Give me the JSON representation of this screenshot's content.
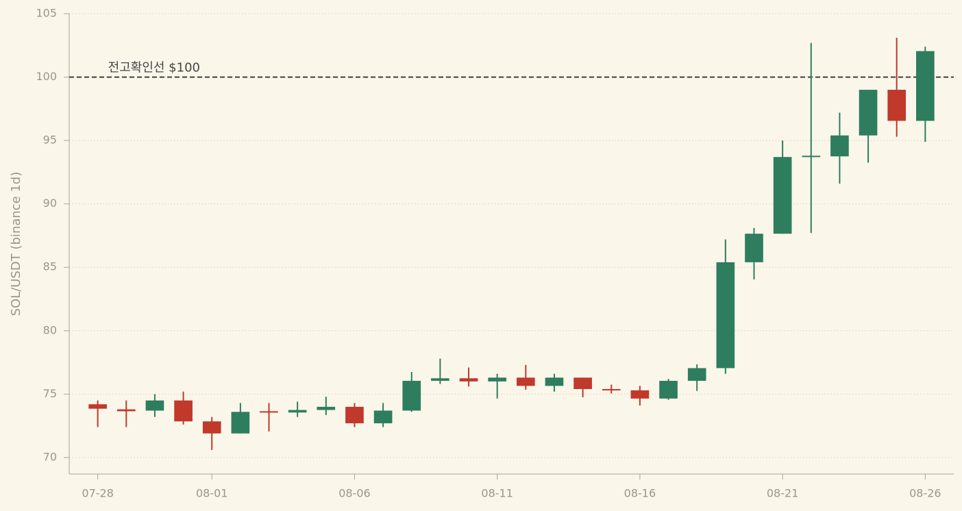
{
  "chart_data": {
    "type": "candlestick",
    "ylabel": "SOL/USDT (binance 1d)",
    "categories": [
      "07-28",
      null,
      null,
      null,
      "08-01",
      null,
      null,
      null,
      null,
      "08-06",
      null,
      null,
      null,
      null,
      "08-11",
      null,
      null,
      null,
      null,
      "08-16",
      null,
      null,
      null,
      null,
      "08-21",
      null,
      null,
      null,
      null,
      "08-26"
    ],
    "open": [
      74.2,
      73.8,
      73.7,
      74.5,
      72.85,
      71.9,
      73.65,
      73.55,
      73.75,
      74.0,
      72.7,
      73.7,
      76.05,
      76.25,
      76.0,
      76.3,
      75.65,
      76.3,
      75.4,
      75.3,
      74.65,
      76.05,
      77.05,
      85.4,
      87.65,
      93.7,
      93.75,
      95.4,
      99.0,
      96.55
    ],
    "high": [
      74.5,
      74.5,
      75.0,
      75.2,
      73.2,
      74.3,
      74.3,
      74.4,
      74.8,
      74.3,
      74.3,
      76.75,
      77.8,
      77.1,
      76.6,
      77.3,
      76.6,
      76.3,
      75.75,
      75.65,
      76.2,
      77.35,
      87.2,
      88.1,
      95.0,
      102.7,
      97.2,
      99.0,
      103.1,
      102.4
    ],
    "low": [
      72.4,
      72.4,
      73.2,
      72.6,
      70.6,
      71.9,
      72.05,
      73.2,
      73.35,
      72.4,
      72.4,
      73.6,
      75.8,
      75.6,
      74.65,
      75.35,
      75.2,
      74.75,
      75.05,
      74.1,
      74.55,
      75.25,
      76.6,
      84.05,
      87.65,
      87.7,
      91.6,
      93.25,
      95.3,
      94.9
    ],
    "close": [
      73.85,
      73.65,
      74.5,
      72.85,
      71.9,
      73.6,
      73.55,
      73.75,
      74.0,
      72.7,
      73.7,
      76.05,
      76.25,
      76.0,
      76.3,
      75.65,
      76.3,
      75.4,
      75.3,
      74.65,
      76.05,
      77.05,
      85.4,
      87.65,
      93.7,
      93.8,
      95.4,
      99.0,
      96.55,
      102.05
    ],
    "up_color": "#2e7d5e",
    "down_color": "#c0392b",
    "ylim": [
      68.7,
      105
    ],
    "yticks": [
      70,
      75,
      80,
      85,
      90,
      95,
      100,
      105
    ],
    "grid": true,
    "annotations": [
      {
        "text": "전고확인선 $100",
        "y": 100
      }
    ]
  }
}
